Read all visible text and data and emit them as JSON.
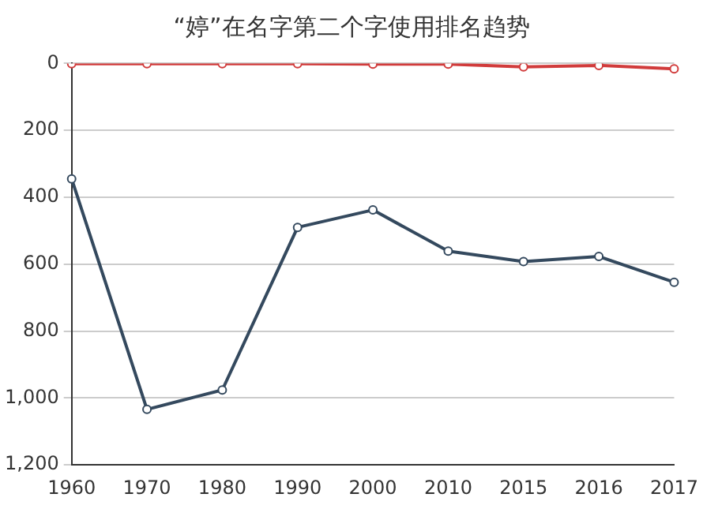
{
  "chart_data": {
    "type": "line",
    "title": "“婷”在名字第二个字使用排名趋势",
    "categories": [
      "1960",
      "1970",
      "1980",
      "1990",
      "2000",
      "2010",
      "2015",
      "2016",
      "2017"
    ],
    "series": [
      {
        "color": "#d13b3b",
        "values": [
          1,
          1,
          1,
          1,
          2,
          2,
          10,
          6,
          16
        ]
      },
      {
        "color": "#34495e",
        "values": [
          345,
          1034,
          976,
          490,
          438,
          561,
          592,
          577,
          654
        ]
      }
    ],
    "ylim": [
      1200,
      0
    ],
    "yticks": [
      0,
      200,
      400,
      600,
      800,
      {
        "value": 1000,
        "label": "1,000"
      },
      {
        "value": 1200,
        "label": "1,200"
      }
    ],
    "grid": "y",
    "legend": false,
    "marker": "circle",
    "line_style": "solid"
  }
}
